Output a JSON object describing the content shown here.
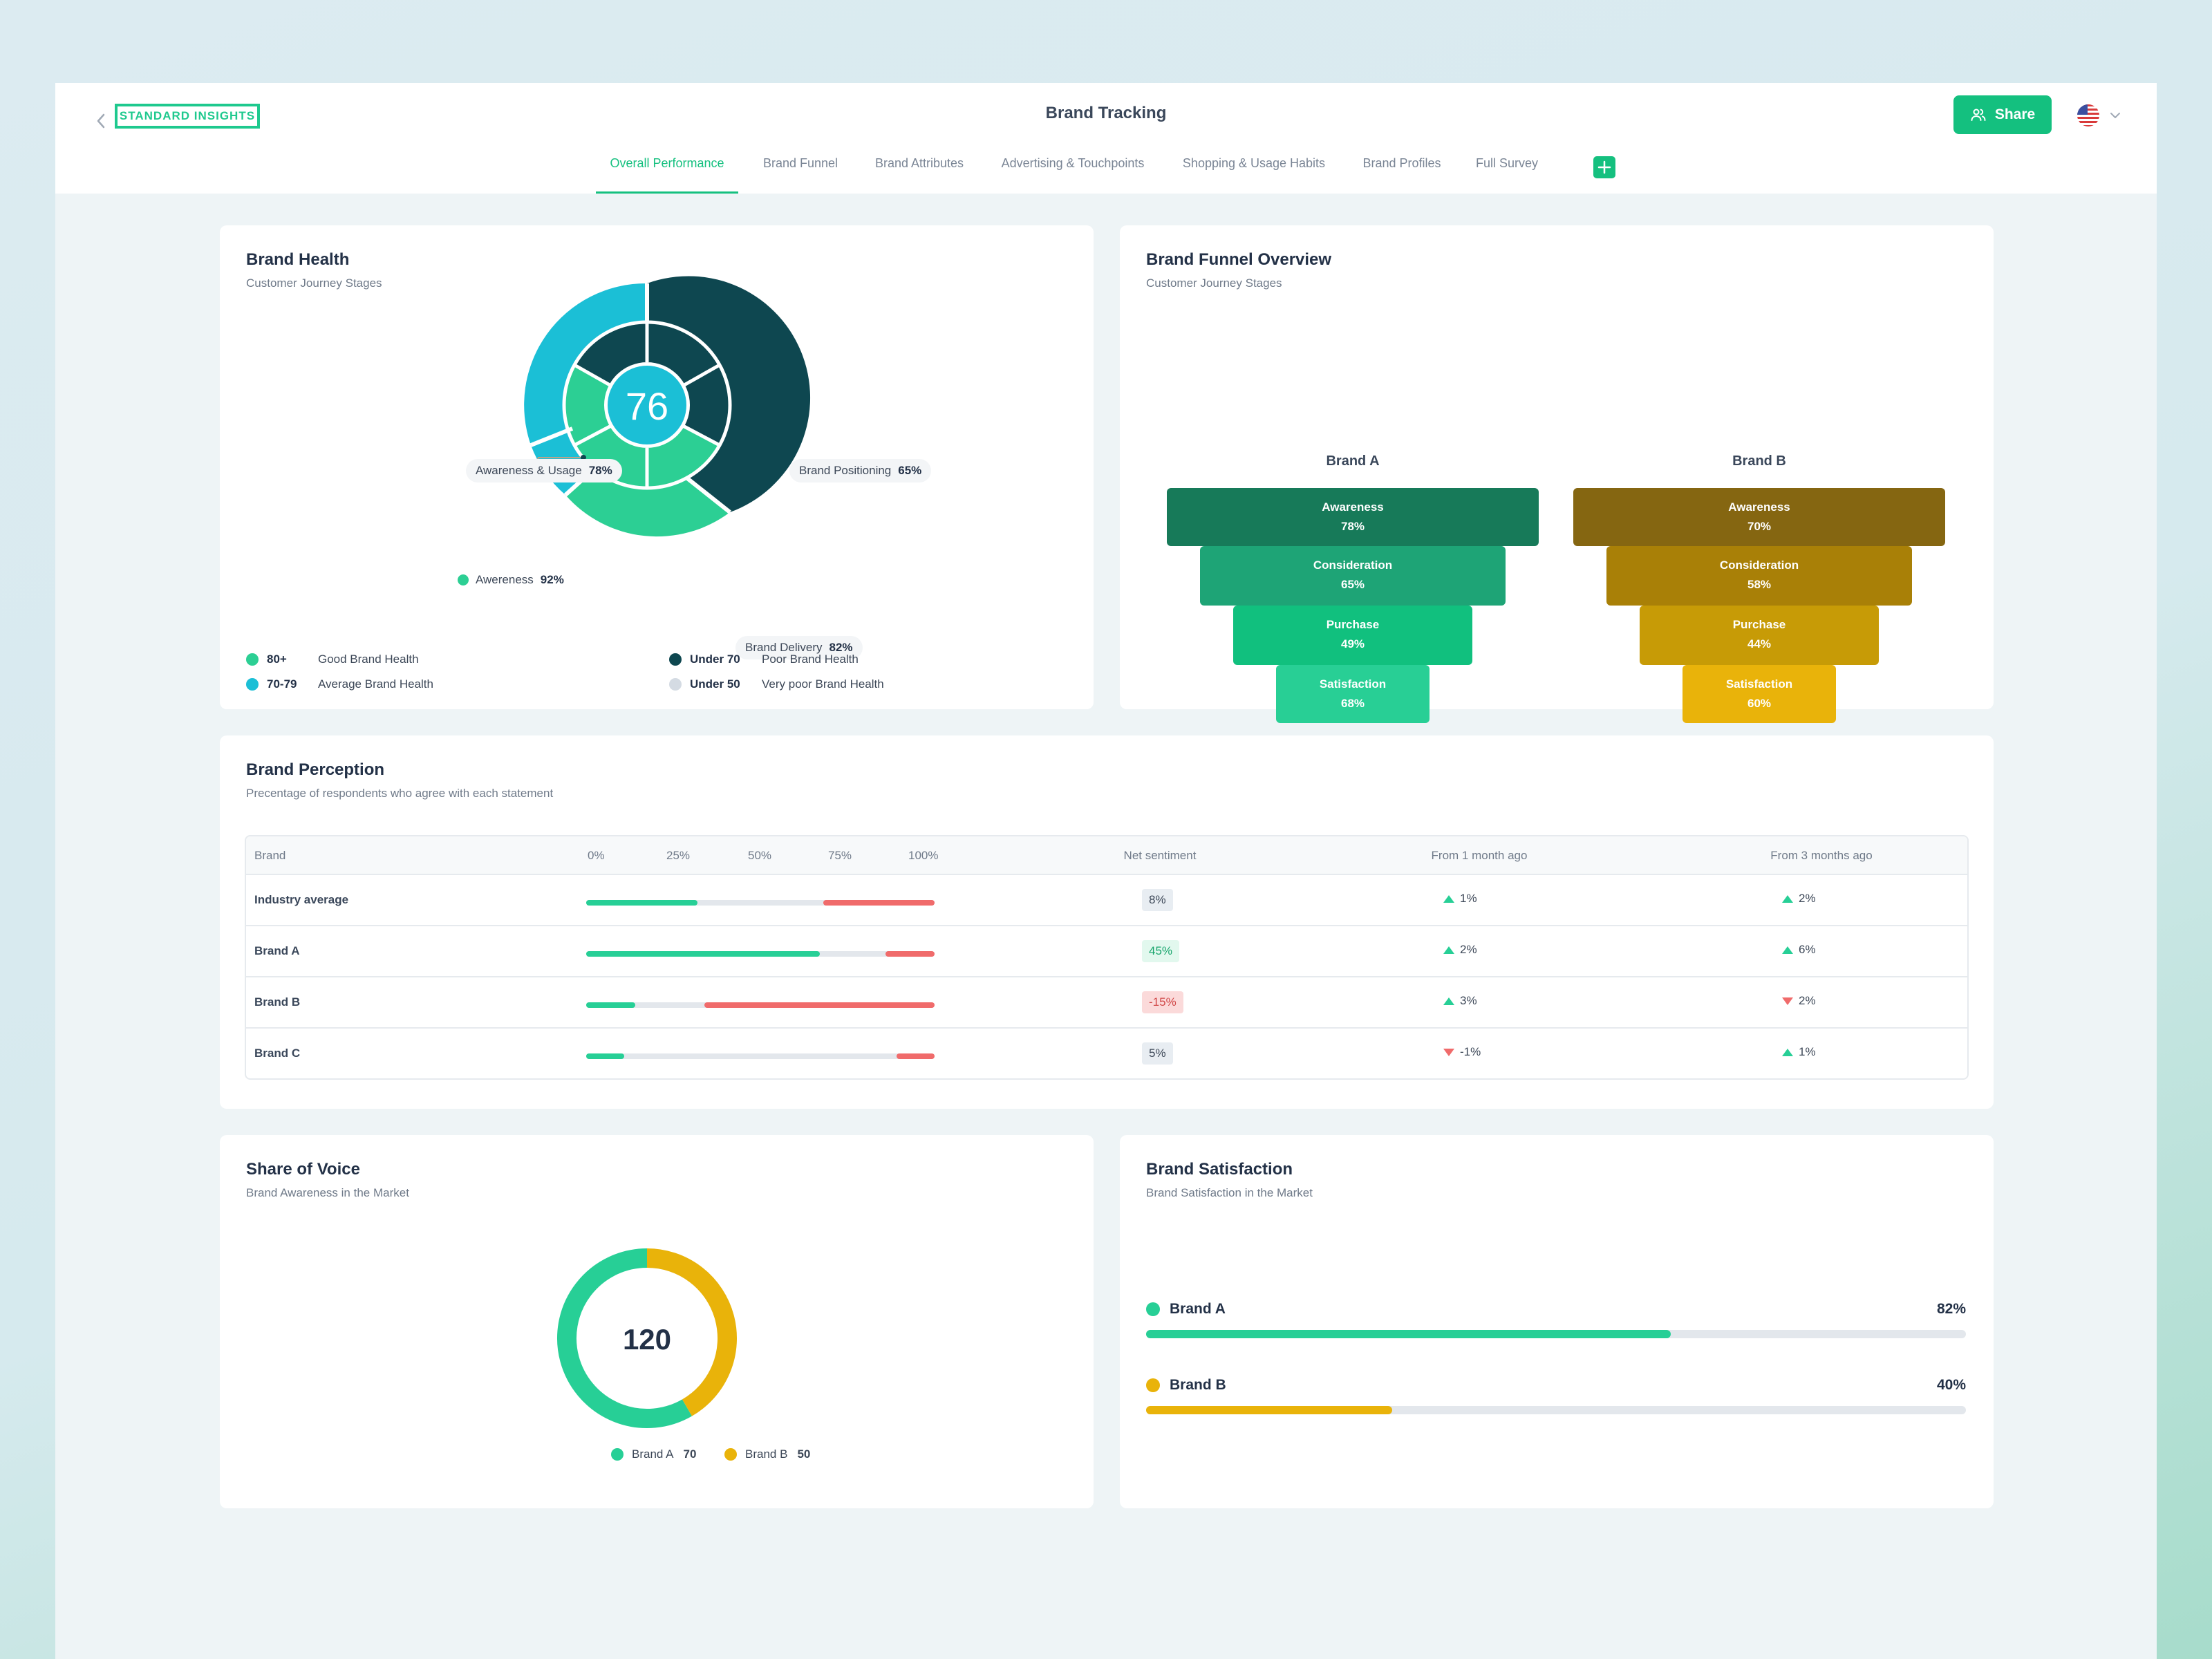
{
  "header": {
    "logo": "STANDARD INSIGHTS",
    "title": "Brand Tracking",
    "share_label": "Share"
  },
  "tabs": [
    {
      "label": "Overall Performance",
      "active": true
    },
    {
      "label": "Brand Funnel"
    },
    {
      "label": "Brand Attributes"
    },
    {
      "label": "Advertising & Touchpoints"
    },
    {
      "label": "Shopping & Usage Habits"
    },
    {
      "label": "Brand Profiles"
    },
    {
      "label": "Full Survey"
    }
  ],
  "brand_health": {
    "title": "Brand Health",
    "subtitle": "Customer Journey Stages",
    "score": "76",
    "callouts": [
      {
        "label": "Awareness & Usage",
        "value": "78%"
      },
      {
        "label": "Brand Positioning",
        "value": "65%"
      },
      {
        "label": "Awereness",
        "value": "92%"
      },
      {
        "label": "Brand Delivery",
        "value": "82%"
      }
    ],
    "legend": [
      {
        "code": "80+",
        "label": "Good Brand Health",
        "color": "#2ccf94"
      },
      {
        "code": "70-79",
        "label": "Average Brand Health",
        "color": "#1bbfd6"
      },
      {
        "code": "Under 70",
        "label": "Poor Brand Health",
        "color": "#0e4750"
      },
      {
        "code": "Under 50",
        "label": "Very poor Brand Health",
        "color": "#d4dbe3"
      }
    ]
  },
  "funnel": {
    "title": "Brand Funnel Overview",
    "subtitle": "Customer Journey Stages",
    "brands": [
      {
        "name": "Brand A",
        "colors": [
          "#177a59",
          "#1ea476",
          "#11c07e",
          "#28cf95"
        ],
        "steps": [
          {
            "label": "Awareness",
            "value": "78%"
          },
          {
            "label": "Consideration",
            "value": "65%"
          },
          {
            "label": "Purchase",
            "value": "49%"
          },
          {
            "label": "Satisfaction",
            "value": "68%"
          }
        ]
      },
      {
        "name": "Brand B",
        "colors": [
          "#856611",
          "#a98007",
          "#c79b06",
          "#e9b30a"
        ],
        "steps": [
          {
            "label": "Awareness",
            "value": "70%"
          },
          {
            "label": "Consideration",
            "value": "58%"
          },
          {
            "label": "Purchase",
            "value": "44%"
          },
          {
            "label": "Satisfaction",
            "value": "60%"
          }
        ]
      }
    ]
  },
  "perception": {
    "title": "Brand Perception",
    "subtitle": "Precentage of respondents who agree with each statement",
    "headers": {
      "brand": "Brand",
      "ticks": [
        "0%",
        "25%",
        "50%",
        "75%",
        "100%"
      ],
      "net": "Net sentiment",
      "m1": "From 1 month ago",
      "m3": "From 3 months ago"
    },
    "rows": [
      {
        "name": "Industry average",
        "agree": 32,
        "disagree": 32,
        "net": "8%",
        "net_type": "neutral",
        "m1": "1%",
        "m1_dir": "up",
        "m3": "2%",
        "m3_dir": "up"
      },
      {
        "name": "Brand A",
        "agree": 67,
        "disagree": 14,
        "net": "45%",
        "net_type": "positive",
        "m1": "2%",
        "m1_dir": "up",
        "m3": "6%",
        "m3_dir": "up"
      },
      {
        "name": "Brand B",
        "agree": 14,
        "disagree": 66,
        "net": "-15%",
        "net_type": "negative",
        "m1": "3%",
        "m1_dir": "up",
        "m3": "2%",
        "m3_dir": "down"
      },
      {
        "name": "Brand C",
        "agree": 11,
        "disagree": 11,
        "net": "5%",
        "net_type": "neutral",
        "m1": "-1%",
        "m1_dir": "down",
        "m3": "1%",
        "m3_dir": "up"
      }
    ]
  },
  "share_of_voice": {
    "title": "Share of Voice",
    "subtitle": "Brand Awareness in the Market",
    "total": "120",
    "series": [
      {
        "name": "Brand A",
        "value": 70,
        "value_label": "70",
        "color": "#27cf96"
      },
      {
        "name": "Brand B",
        "value": 50,
        "value_label": "50",
        "color": "#e9b30a"
      }
    ]
  },
  "satisfaction": {
    "title": "Brand Satisfaction",
    "subtitle": "Brand Satisfaction in the Market",
    "rows": [
      {
        "name": "Brand A",
        "value": "82%",
        "fill": 0.64,
        "color": "#27cf96"
      },
      {
        "name": "Brand B",
        "value": "40%",
        "fill": 0.3,
        "color": "#e9b30a"
      }
    ]
  }
}
